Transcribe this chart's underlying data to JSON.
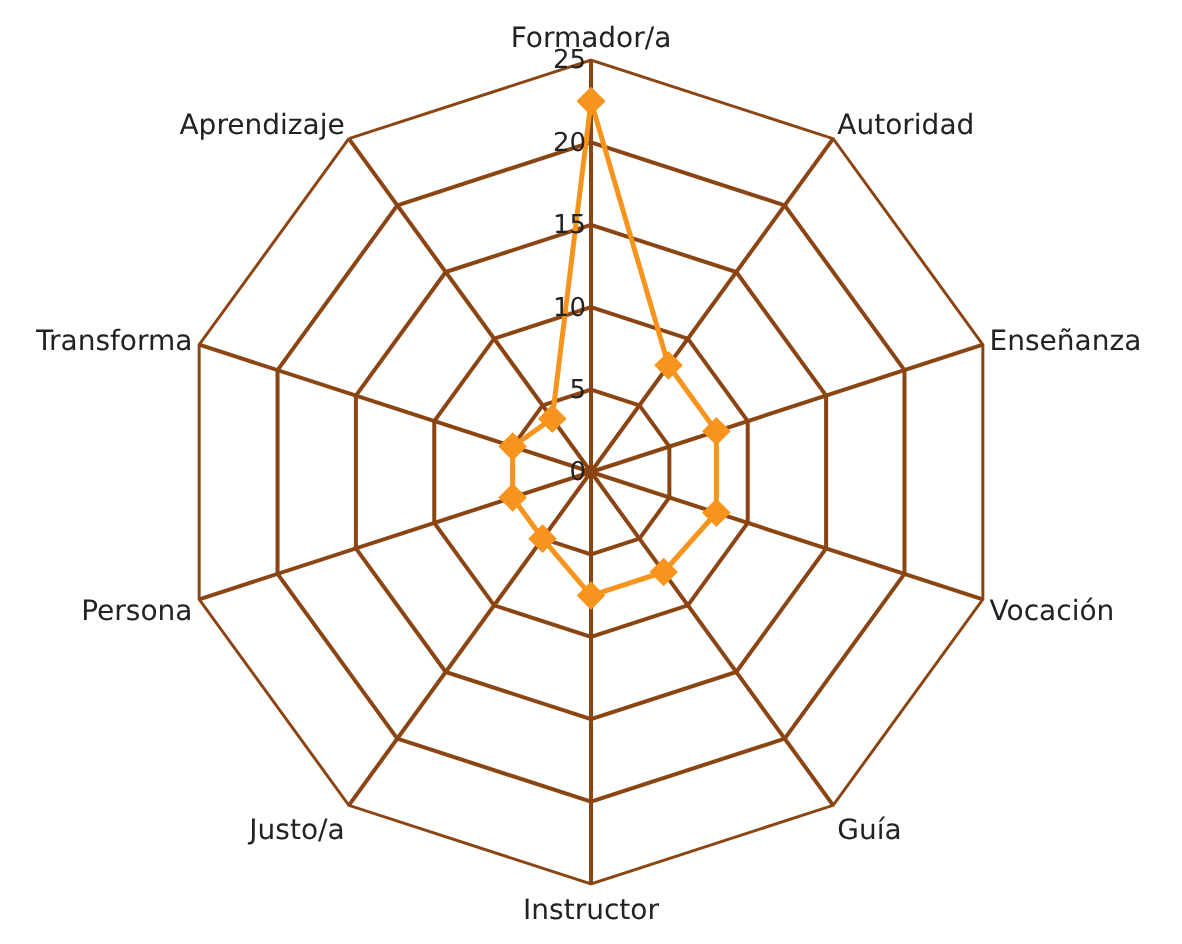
{
  "chart_data": {
    "type": "radar",
    "categories": [
      "Formador/a",
      "Autoridad",
      "Enseñanza",
      "Vocación",
      "Guía",
      "Instructor",
      "Justo/a",
      "Persona",
      "Transforma",
      "Aprendizaje"
    ],
    "series": [
      {
        "color": "#f7941d",
        "values": [
          22.5,
          8,
          8,
          8,
          7.5,
          7.5,
          5,
          5,
          5,
          4
        ]
      }
    ],
    "ylim": [
      0,
      25
    ],
    "yticks": [
      0,
      5,
      10,
      15,
      20,
      25
    ],
    "grid": true,
    "marker": "diamond",
    "line_style": "solid"
  }
}
